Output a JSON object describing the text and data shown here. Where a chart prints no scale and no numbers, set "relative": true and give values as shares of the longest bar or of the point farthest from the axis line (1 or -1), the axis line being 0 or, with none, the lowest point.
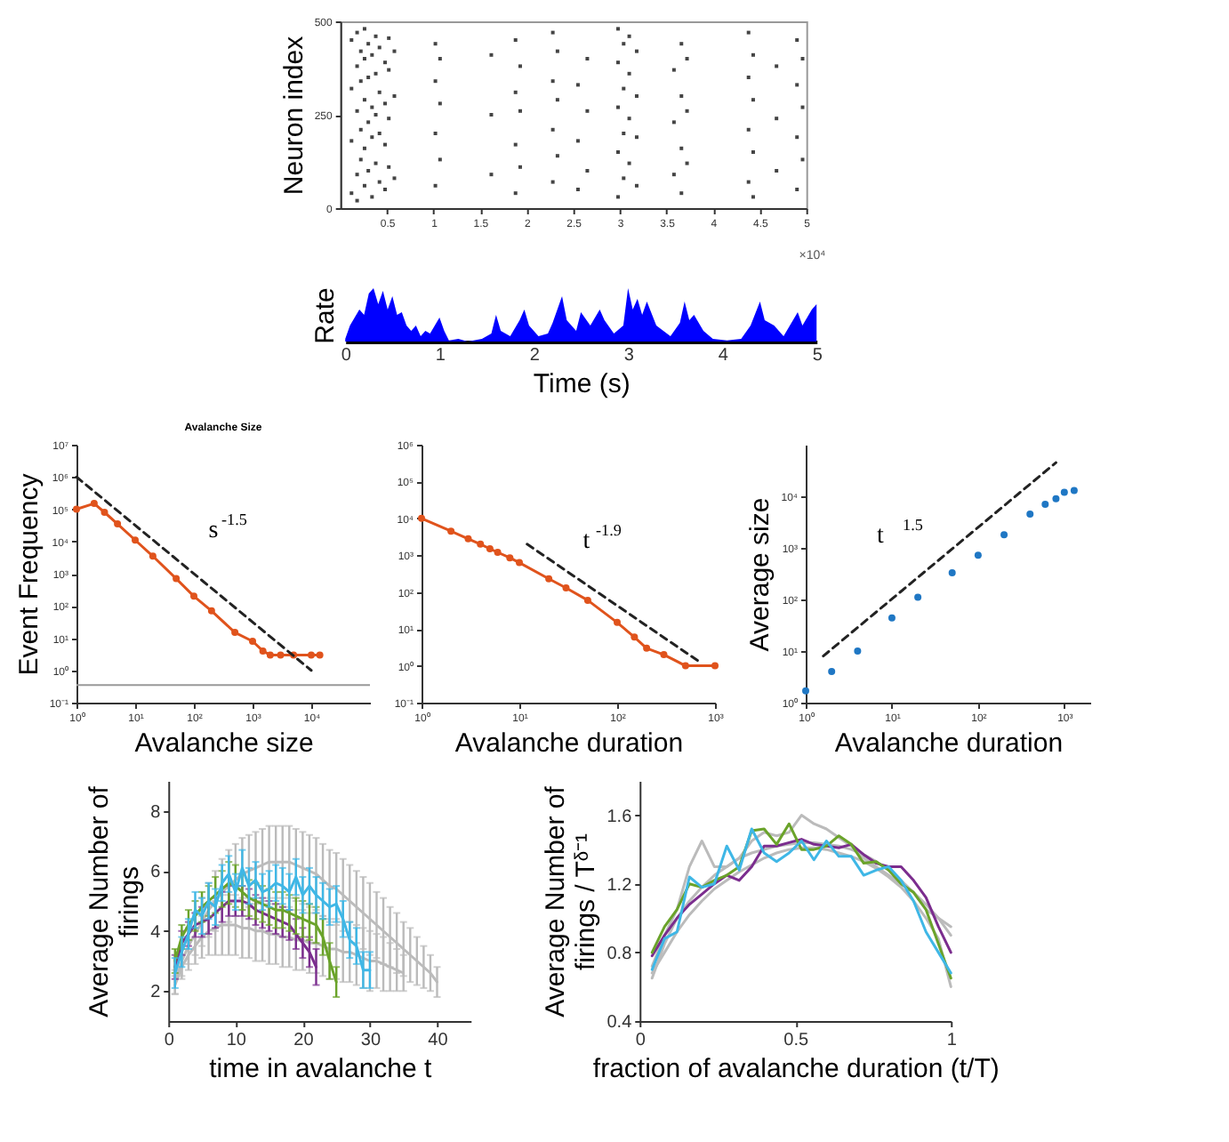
{
  "chart_data": [
    {
      "type": "scatter",
      "ylabel": "Neuron index",
      "marker": "square",
      "xlim": [
        0,
        5
      ],
      "ylim": [
        0,
        500
      ],
      "xticks": [
        0.5,
        1,
        1.5,
        2,
        2.5,
        3,
        3.5,
        4,
        4.5,
        5
      ],
      "yticks": [
        0,
        250,
        500
      ],
      "annotations": [
        "×10⁴"
      ],
      "series": [
        {
          "color": "#444444",
          "x": [
            0.12,
            0.12,
            0.12,
            0.12,
            0.18,
            0.18,
            0.18,
            0.18,
            0.18,
            0.22,
            0.22,
            0.22,
            0.22,
            0.26,
            0.26,
            0.26,
            0.26,
            0.26,
            0.3,
            0.3,
            0.3,
            0.3,
            0.34,
            0.34,
            0.34,
            0.34,
            0.38,
            0.38,
            0.38,
            0.38,
            0.42,
            0.42,
            0.42,
            0.42,
            0.48,
            0.48,
            0.48,
            0.48,
            0.52,
            0.52,
            0.52,
            0.52,
            0.58,
            0.58,
            0.58,
            1.02,
            1.02,
            1.02,
            1.02,
            1.07,
            1.07,
            1.07,
            1.62,
            1.62,
            1.62,
            1.88,
            1.88,
            1.88,
            1.88,
            1.93,
            1.93,
            1.93,
            2.28,
            2.28,
            2.28,
            2.28,
            2.33,
            2.33,
            2.33,
            2.55,
            2.55,
            2.55,
            2.65,
            2.65,
            2.65,
            2.98,
            2.98,
            2.98,
            2.98,
            2.98,
            3.04,
            3.04,
            3.04,
            3.04,
            3.1,
            3.1,
            3.1,
            3.1,
            3.18,
            3.18,
            3.18,
            3.18,
            3.58,
            3.58,
            3.58,
            3.66,
            3.66,
            3.66,
            3.66,
            3.72,
            3.72,
            3.72,
            4.38,
            4.38,
            4.38,
            4.38,
            4.43,
            4.43,
            4.43,
            4.43,
            4.68,
            4.68,
            4.68,
            4.9,
            4.9,
            4.9,
            4.9,
            4.96,
            4.96,
            4.96
          ],
          "values": [
            40,
            180,
            320,
            450,
            90,
            260,
            380,
            470,
            20,
            130,
            210,
            340,
            420,
            60,
            160,
            290,
            400,
            480,
            100,
            230,
            350,
            440,
            30,
            190,
            270,
            410,
            120,
            250,
            360,
            460,
            70,
            200,
            310,
            430,
            50,
            170,
            280,
            390,
            110,
            240,
            370,
            455,
            80,
            300,
            420,
            60,
            200,
            340,
            440,
            130,
            280,
            400,
            90,
            250,
            410,
            40,
            170,
            310,
            450,
            110,
            260,
            380,
            70,
            210,
            340,
            470,
            140,
            290,
            420,
            50,
            180,
            330,
            100,
            260,
            400,
            30,
            150,
            270,
            390,
            480,
            80,
            200,
            320,
            440,
            120,
            240,
            360,
            460,
            60,
            190,
            300,
            420,
            90,
            230,
            370,
            40,
            160,
            300,
            440,
            120,
            260,
            400,
            70,
            210,
            350,
            470,
            30,
            150,
            290,
            410,
            100,
            240,
            380,
            50,
            190,
            330,
            450,
            130,
            270,
            400
          ]
        }
      ]
    },
    {
      "type": "area",
      "xlabel": "Time (s)",
      "ylabel": "Rate",
      "relative": true,
      "xlim": [
        0,
        5
      ],
      "xticks": [
        0,
        1,
        2,
        3,
        4,
        5
      ],
      "series": [
        {
          "color": "#0000ff",
          "x": [
            0,
            0.05,
            0.1,
            0.15,
            0.2,
            0.25,
            0.3,
            0.35,
            0.4,
            0.45,
            0.5,
            0.55,
            0.6,
            0.65,
            0.7,
            0.75,
            0.8,
            0.85,
            0.9,
            0.95,
            1.0,
            1.05,
            1.1,
            1.2,
            1.3,
            1.45,
            1.55,
            1.6,
            1.65,
            1.75,
            1.85,
            1.9,
            1.95,
            2.05,
            2.15,
            2.2,
            2.3,
            2.35,
            2.45,
            2.5,
            2.6,
            2.7,
            2.75,
            2.85,
            2.95,
            3.0,
            3.05,
            3.1,
            3.15,
            3.2,
            3.3,
            3.45,
            3.55,
            3.6,
            3.65,
            3.7,
            3.8,
            3.9,
            4.05,
            4.2,
            4.3,
            4.4,
            4.45,
            4.55,
            4.65,
            4.75,
            4.8,
            4.85,
            4.9,
            4.95,
            5.0
          ],
          "values": [
            0.05,
            0.3,
            0.45,
            0.6,
            0.5,
            0.9,
            1.0,
            0.7,
            0.95,
            0.6,
            0.85,
            0.5,
            0.55,
            0.3,
            0.2,
            0.3,
            0.1,
            0.2,
            0.15,
            0.3,
            0.45,
            0.2,
            0.02,
            0.05,
            0.0,
            0.05,
            0.15,
            0.5,
            0.2,
            0.1,
            0.4,
            0.6,
            0.3,
            0.1,
            0.15,
            0.35,
            0.85,
            0.4,
            0.2,
            0.55,
            0.3,
            0.6,
            0.4,
            0.15,
            0.3,
            1.0,
            0.6,
            0.8,
            0.5,
            0.75,
            0.3,
            0.1,
            0.35,
            0.75,
            0.4,
            0.5,
            0.2,
            0.05,
            0.02,
            0.05,
            0.3,
            0.75,
            0.4,
            0.3,
            0.1,
            0.4,
            0.55,
            0.3,
            0.45,
            0.6,
            0.7
          ]
        }
      ]
    },
    {
      "type": "line",
      "title": "Avalanche Size",
      "xlabel": "Avalanche size",
      "ylabel": "Event Frequency",
      "log": "xy",
      "xlim": [
        1,
        100000
      ],
      "ylim": [
        0.1,
        10000000
      ],
      "xticks": [
        {
          "value": 1,
          "label": "10⁰"
        },
        {
          "value": 10,
          "label": "10¹"
        },
        {
          "value": 100,
          "label": "10²"
        },
        {
          "value": 1000,
          "label": "10³"
        },
        {
          "value": 10000,
          "label": "10⁴"
        }
      ],
      "yticks": [
        {
          "value": 0.1,
          "label": "10⁻¹"
        },
        {
          "value": 1,
          "label": "10⁰"
        },
        {
          "value": 10,
          "label": "10¹"
        },
        {
          "value": 100,
          "label": "10²"
        },
        {
          "value": 1000,
          "label": "10³"
        },
        {
          "value": 10000,
          "label": "10⁴"
        },
        {
          "value": 100000,
          "label": "10⁵"
        },
        {
          "value": 1000000,
          "label": "10⁶"
        },
        {
          "value": 10000000,
          "label": "10⁷"
        }
      ],
      "ref_lines": [
        {
          "axis": "y",
          "value": 0.35,
          "color": "#999999"
        }
      ],
      "annotations": [
        "s$^{-1.5}$"
      ],
      "series": [
        {
          "color": "#e0531c",
          "marker": "circle",
          "x": [
            1,
            2,
            3,
            5,
            10,
            20,
            50,
            100,
            200,
            500,
            1000,
            1500,
            2000,
            3000,
            5000,
            10000,
            14000
          ],
          "values": [
            100000,
            150000,
            80000,
            35000,
            11000,
            3500,
            700,
            200,
            70,
            15,
            8,
            4,
            3,
            3,
            3,
            3,
            3
          ]
        },
        {
          "type": "line",
          "color": "#222222",
          "line_style": "dashed",
          "x": [
            1,
            10000
          ],
          "values": [
            1000000,
            1
          ]
        }
      ]
    },
    {
      "type": "line",
      "xlabel": "Avalanche duration",
      "log": "xy",
      "xlim": [
        1,
        1000
      ],
      "ylim": [
        0.1,
        1000000
      ],
      "xticks": [
        {
          "value": 1,
          "label": "10⁰"
        },
        {
          "value": 10,
          "label": "10¹"
        },
        {
          "value": 100,
          "label": "10²"
        },
        {
          "value": 1000,
          "label": "10³"
        }
      ],
      "yticks": [
        {
          "value": 0.1,
          "label": "10⁻¹"
        },
        {
          "value": 1,
          "label": "10⁰"
        },
        {
          "value": 10,
          "label": "10¹"
        },
        {
          "value": 100,
          "label": "10²"
        },
        {
          "value": 1000,
          "label": "10³"
        },
        {
          "value": 10000,
          "label": "10⁴"
        },
        {
          "value": 100000,
          "label": "10⁵"
        },
        {
          "value": 1000000,
          "label": "10⁶"
        }
      ],
      "annotations": [
        "t$^{-1.9}$"
      ],
      "series": [
        {
          "color": "#e0531c",
          "marker": "circle",
          "x": [
            1,
            2,
            3,
            4,
            5,
            6,
            8,
            10,
            20,
            30,
            50,
            100,
            150,
            200,
            300,
            500,
            1000
          ],
          "values": [
            10000,
            4500,
            2800,
            2000,
            1500,
            1200,
            850,
            630,
            230,
            130,
            60,
            15,
            6,
            3,
            2,
            1,
            1
          ]
        },
        {
          "type": "line",
          "color": "#222222",
          "line_style": "dashed",
          "x": [
            12,
            700
          ],
          "values": [
            2000,
            1.26
          ]
        }
      ]
    },
    {
      "type": "scatter",
      "xlabel": "Avalanche duration",
      "ylabel": "Average size",
      "log": "xy",
      "xlim": [
        1,
        2000
      ],
      "ylim": [
        1,
        100000
      ],
      "xticks": [
        {
          "value": 1,
          "label": "10⁰"
        },
        {
          "value": 10,
          "label": "10¹"
        },
        {
          "value": 100,
          "label": "10²"
        },
        {
          "value": 1000,
          "label": "10³"
        }
      ],
      "yticks": [
        {
          "value": 1,
          "label": "10⁰"
        },
        {
          "value": 10,
          "label": "10¹"
        },
        {
          "value": 100,
          "label": "10²"
        },
        {
          "value": 1000,
          "label": "10³"
        },
        {
          "value": 10000,
          "label": "10⁴"
        }
      ],
      "annotations": [
        "t $^{1.5}$"
      ],
      "series": [
        {
          "color": "#1f77c4",
          "marker": "circle",
          "x": [
            1,
            2,
            4,
            10,
            20,
            50,
            100,
            200,
            400,
            600,
            800,
            1000,
            1300
          ],
          "values": [
            1.7,
            4,
            10,
            44,
            110,
            330,
            720,
            1800,
            4500,
            7000,
            9000,
            12000,
            13000
          ]
        },
        {
          "type": "line",
          "color": "#222222",
          "line_style": "dashed",
          "x": [
            1.6,
            800
          ],
          "values": [
            8,
            45000
          ]
        }
      ]
    },
    {
      "type": "line",
      "xlabel": "time in avalanche t",
      "ylabel": "Average Number of\nfirings",
      "xlim": [
        0,
        45
      ],
      "ylim": [
        1,
        9
      ],
      "xticks": [
        0,
        10,
        20,
        30,
        40
      ],
      "yticks": [
        2,
        4,
        6,
        8
      ],
      "series": [
        {
          "color": "#bbbbbb",
          "x": [
            1,
            2,
            3,
            4,
            5,
            6,
            7,
            8,
            9,
            10,
            11,
            12,
            13,
            14,
            15,
            16,
            17,
            18,
            19,
            20,
            21,
            22,
            23,
            24,
            25,
            26,
            27,
            28,
            29,
            30,
            31,
            32,
            33,
            34,
            35,
            36,
            37,
            38,
            39,
            40
          ],
          "values": [
            2.3,
            3.0,
            3.5,
            3.9,
            4.3,
            4.7,
            5.0,
            5.3,
            5.5,
            5.7,
            5.9,
            6.0,
            6.1,
            6.2,
            6.3,
            6.3,
            6.3,
            6.3,
            6.2,
            6.1,
            6.0,
            5.9,
            5.7,
            5.5,
            5.4,
            5.2,
            5.0,
            4.8,
            4.6,
            4.4,
            4.2,
            4.0,
            3.8,
            3.6,
            3.4,
            3.2,
            3.0,
            2.8,
            2.6,
            2.3
          ],
          "errors": [
            0.4,
            0.5,
            0.6,
            0.7,
            0.8,
            0.9,
            1.0,
            1.1,
            1.2,
            1.2,
            1.2,
            1.2,
            1.2,
            1.2,
            1.2,
            1.2,
            1.2,
            1.2,
            1.2,
            1.2,
            1.2,
            1.2,
            1.2,
            1.2,
            1.2,
            1.2,
            1.2,
            1.2,
            1.2,
            1.2,
            1.1,
            1.1,
            1.0,
            1.0,
            0.9,
            0.9,
            0.8,
            0.7,
            0.6,
            0.5
          ]
        },
        {
          "color": "#bbbbbb",
          "x": [
            1,
            2,
            3,
            4,
            5,
            6,
            7,
            8,
            9,
            10,
            11,
            12,
            13,
            14,
            15,
            16,
            17,
            18,
            19,
            20,
            21,
            22,
            23,
            24,
            25,
            26,
            27,
            28,
            29,
            30,
            31,
            32,
            33,
            34,
            35
          ],
          "values": [
            2.2,
            2.8,
            3.2,
            3.5,
            3.8,
            4.0,
            4.1,
            4.2,
            4.2,
            4.2,
            4.1,
            4.1,
            4.0,
            4.0,
            3.9,
            3.9,
            3.8,
            3.8,
            3.7,
            3.7,
            3.6,
            3.6,
            3.5,
            3.4,
            3.4,
            3.3,
            3.3,
            3.2,
            3.1,
            3.0,
            3.0,
            2.9,
            2.8,
            2.7,
            2.6
          ],
          "errors": [
            0.3,
            0.4,
            0.5,
            0.6,
            0.7,
            0.8,
            0.9,
            1.0,
            1.0,
            1.0,
            1.0,
            1.0,
            1.0,
            1.0,
            1.0,
            1.0,
            1.0,
            1.0,
            1.0,
            1.0,
            1.0,
            1.0,
            1.0,
            1.0,
            1.0,
            1.0,
            1.0,
            1.0,
            1.0,
            1.0,
            0.9,
            0.9,
            0.8,
            0.7,
            0.6
          ]
        },
        {
          "color": "#7b2d8e",
          "x": [
            1,
            2,
            3,
            4,
            5,
            6,
            7,
            8,
            9,
            10,
            11,
            12,
            13,
            14,
            15,
            16,
            17,
            18,
            19,
            20,
            21,
            22
          ],
          "values": [
            2.8,
            3.6,
            3.9,
            4.2,
            4.3,
            4.4,
            4.6,
            4.8,
            5.0,
            5.0,
            5.0,
            4.9,
            4.7,
            4.6,
            4.5,
            4.4,
            4.3,
            4.2,
            3.9,
            3.6,
            3.3,
            2.8
          ],
          "errors": [
            0.4,
            0.4,
            0.4,
            0.4,
            0.5,
            0.5,
            0.5,
            0.5,
            0.5,
            0.5,
            0.5,
            0.5,
            0.5,
            0.5,
            0.5,
            0.5,
            0.5,
            0.5,
            0.5,
            0.5,
            0.5,
            0.6
          ]
        },
        {
          "color": "#6aa32a",
          "x": [
            1,
            2,
            3,
            4,
            5,
            6,
            7,
            8,
            9,
            10,
            11,
            12,
            13,
            14,
            15,
            16,
            17,
            18,
            19,
            20,
            21,
            22,
            23,
            24,
            25
          ],
          "values": [
            3.0,
            3.8,
            4.2,
            4.5,
            4.8,
            5.0,
            5.2,
            5.4,
            5.6,
            5.5,
            5.3,
            5.1,
            5.0,
            4.9,
            4.8,
            4.7,
            4.7,
            4.6,
            4.5,
            4.4,
            4.3,
            4.2,
            3.8,
            3.0,
            2.3
          ],
          "errors": [
            0.4,
            0.4,
            0.5,
            0.5,
            0.5,
            0.5,
            0.6,
            0.6,
            0.7,
            0.7,
            0.6,
            0.6,
            0.6,
            0.6,
            0.6,
            0.6,
            0.6,
            0.6,
            0.6,
            0.6,
            0.6,
            0.6,
            0.6,
            0.6,
            0.5
          ]
        },
        {
          "color": "#3fb7e6",
          "x": [
            1,
            2,
            3,
            4,
            5,
            6,
            7,
            8,
            9,
            10,
            11,
            12,
            13,
            14,
            15,
            16,
            17,
            18,
            19,
            20,
            21,
            22,
            23,
            24,
            25,
            26,
            27,
            28,
            29,
            30
          ],
          "values": [
            2.6,
            3.3,
            3.9,
            4.7,
            4.5,
            5.0,
            4.8,
            5.6,
            5.9,
            5.3,
            6.1,
            5.5,
            5.7,
            5.3,
            5.4,
            5.6,
            5.5,
            5.3,
            5.8,
            5.2,
            5.5,
            5.2,
            5.0,
            4.8,
            4.9,
            4.4,
            3.7,
            3.5,
            2.7,
            2.7
          ],
          "errors": [
            0.5,
            0.5,
            0.5,
            0.6,
            0.6,
            0.6,
            0.6,
            0.6,
            0.6,
            0.6,
            0.6,
            0.6,
            0.6,
            0.6,
            0.6,
            0.6,
            0.6,
            0.6,
            0.6,
            0.6,
            0.6,
            0.6,
            0.6,
            0.6,
            0.6,
            0.6,
            0.6,
            0.6,
            0.6,
            0.6
          ]
        }
      ]
    },
    {
      "type": "line",
      "xlabel": "fraction of avalanche duration (t/T)",
      "ylabel": "Average Number of\nfirings / Tᵟ⁻¹",
      "xlim": [
        0,
        1
      ],
      "ylim": [
        0.4,
        1.8
      ],
      "xticks": [
        0,
        0.5,
        1
      ],
      "yticks": [
        0.4,
        0.8,
        1.2,
        1.6
      ],
      "x": [
        0.04,
        0.08,
        0.12,
        0.16,
        0.2,
        0.24,
        0.28,
        0.32,
        0.36,
        0.4,
        0.44,
        0.48,
        0.52,
        0.56,
        0.6,
        0.64,
        0.68,
        0.72,
        0.76,
        0.8,
        0.84,
        0.88,
        0.92,
        0.96,
        1.0
      ],
      "series": [
        {
          "color": "#bbbbbb",
          "values": [
            0.65,
            0.85,
            1.0,
            1.1,
            1.18,
            1.25,
            1.3,
            1.35,
            1.38,
            1.4,
            1.42,
            1.43,
            1.44,
            1.44,
            1.43,
            1.42,
            1.4,
            1.37,
            1.33,
            1.28,
            1.22,
            1.15,
            1.08,
            1.0,
            0.9
          ]
        },
        {
          "color": "#bbbbbb",
          "values": [
            0.68,
            0.8,
            0.92,
            1.02,
            1.1,
            1.17,
            1.22,
            1.27,
            1.31,
            1.35,
            1.38,
            1.4,
            1.41,
            1.41,
            1.4,
            1.38,
            1.36,
            1.33,
            1.29,
            1.24,
            1.18,
            1.1,
            1.0,
            0.88,
            0.6
          ]
        },
        {
          "color": "#bbbbbb",
          "values": [
            0.72,
            0.9,
            1.05,
            1.3,
            1.45,
            1.3,
            1.3,
            1.35,
            1.45,
            1.5,
            1.48,
            1.5,
            1.6,
            1.55,
            1.52,
            1.47,
            1.42,
            1.35,
            1.3,
            1.25,
            1.2,
            1.15,
            1.05,
            1.0,
            0.95
          ]
        },
        {
          "color": "#7b2d8e",
          "values": [
            0.78,
            0.9,
            1.0,
            1.08,
            1.14,
            1.2,
            1.25,
            1.22,
            1.3,
            1.42,
            1.42,
            1.44,
            1.46,
            1.43,
            1.42,
            1.41,
            1.43,
            1.37,
            1.32,
            1.3,
            1.3,
            1.22,
            1.12,
            0.95,
            0.8
          ]
        },
        {
          "color": "#6aa32a",
          "values": [
            0.8,
            0.95,
            1.05,
            1.2,
            1.18,
            1.22,
            1.25,
            1.3,
            1.51,
            1.52,
            1.43,
            1.55,
            1.4,
            1.4,
            1.42,
            1.48,
            1.43,
            1.32,
            1.33,
            1.28,
            1.2,
            1.15,
            1.05,
            0.85,
            0.65
          ]
        },
        {
          "color": "#3fb7e6",
          "values": [
            0.7,
            0.88,
            0.92,
            1.24,
            1.18,
            1.2,
            1.42,
            1.28,
            1.52,
            1.38,
            1.33,
            1.38,
            1.45,
            1.34,
            1.45,
            1.36,
            1.36,
            1.25,
            1.28,
            1.3,
            1.22,
            1.1,
            0.92,
            0.8,
            0.68
          ]
        }
      ]
    }
  ]
}
